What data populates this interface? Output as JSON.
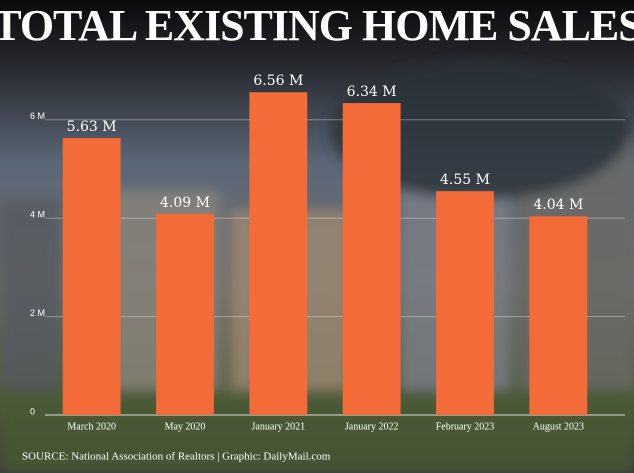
{
  "chart_data": {
    "type": "bar",
    "title": "TOTAL EXISTING HOME SALES",
    "categories": [
      "March 2020",
      "May 2020",
      "January 2021",
      "January 2022",
      "February 2023",
      "August 2023"
    ],
    "values": [
      5.63,
      4.09,
      6.56,
      6.34,
      4.55,
      4.04
    ],
    "value_labels": [
      "5.63 M",
      "4.09 M",
      "6.56 M",
      "6.34 M",
      "4.55 M",
      "4.04 M"
    ],
    "color": "#f26b38",
    "ylim": [
      0,
      7
    ],
    "yticks": [
      0,
      {
        "value": 2,
        "label": "2 M"
      },
      {
        "value": 4,
        "label": "4 M"
      },
      {
        "value": 6,
        "label": "6 M"
      }
    ],
    "grid": true,
    "source": "SOURCE: National Association of Realtors  |  Graphic: DailyMail.com"
  }
}
